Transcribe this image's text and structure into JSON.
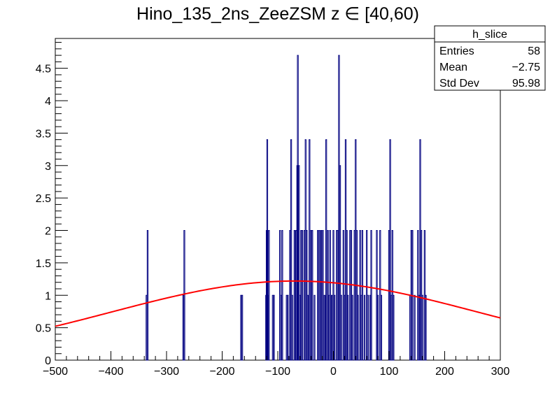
{
  "chart_data": {
    "type": "histogram",
    "title": "Hino_135_2ns_ZeeZSM z  ∈ [40,60)",
    "xlim": [
      -500,
      300
    ],
    "ylim": [
      0,
      4.96
    ],
    "x_ticks": [
      "−500",
      "−400",
      "−300",
      "−200",
      "−100",
      "0",
      "100",
      "200",
      "300"
    ],
    "y_ticks": [
      "0",
      "0.5",
      "1",
      "1.5",
      "2",
      "2.5",
      "3",
      "3.5",
      "4",
      "4.5"
    ],
    "bin_width": 1.6,
    "series": [
      {
        "kind": "histogram",
        "color": "#000080",
        "bins": [
          [
            -336,
            1
          ],
          [
            -334,
            2
          ],
          [
            -270,
            1
          ],
          [
            -268,
            2
          ],
          [
            -166,
            1
          ],
          [
            -164,
            1
          ],
          [
            -121,
            1
          ],
          [
            -120,
            2
          ],
          [
            -119,
            3.4
          ],
          [
            -118,
            1
          ],
          [
            -116,
            2
          ],
          [
            -109,
            1
          ],
          [
            -107,
            1
          ],
          [
            -96,
            2
          ],
          [
            -94,
            1
          ],
          [
            -92,
            2
          ],
          [
            -84,
            1
          ],
          [
            -82,
            1
          ],
          [
            -78,
            2
          ],
          [
            -76,
            3.4
          ],
          [
            -74,
            1
          ],
          [
            -70,
            2
          ],
          [
            -67,
            2
          ],
          [
            -65,
            3
          ],
          [
            -64,
            4.7
          ],
          [
            -62,
            3
          ],
          [
            -60,
            1
          ],
          [
            -58,
            2
          ],
          [
            -56,
            2
          ],
          [
            -52,
            2
          ],
          [
            -50,
            3.4
          ],
          [
            -48,
            2
          ],
          [
            -46,
            1
          ],
          [
            -43,
            3.4
          ],
          [
            -40,
            2
          ],
          [
            -38,
            2
          ],
          [
            -34,
            1
          ],
          [
            -28,
            2
          ],
          [
            -25,
            2
          ],
          [
            -22,
            2
          ],
          [
            -19,
            2
          ],
          [
            -16,
            1
          ],
          [
            -13,
            3.4
          ],
          [
            -10,
            2
          ],
          [
            -8,
            1
          ],
          [
            -6,
            2
          ],
          [
            -3,
            1
          ],
          [
            0,
            2
          ],
          [
            2,
            1
          ],
          [
            6,
            2
          ],
          [
            8,
            2
          ],
          [
            10,
            4.7
          ],
          [
            12,
            3
          ],
          [
            14,
            1
          ],
          [
            18,
            2
          ],
          [
            20,
            1
          ],
          [
            22,
            3.4
          ],
          [
            24,
            2
          ],
          [
            26,
            1
          ],
          [
            30,
            2
          ],
          [
            32,
            2
          ],
          [
            34,
            1
          ],
          [
            38,
            2
          ],
          [
            40,
            3.4
          ],
          [
            42,
            2
          ],
          [
            44,
            1
          ],
          [
            48,
            2
          ],
          [
            50,
            1
          ],
          [
            52,
            2
          ],
          [
            56,
            1
          ],
          [
            60,
            2
          ],
          [
            62,
            1
          ],
          [
            66,
            1
          ],
          [
            68,
            2
          ],
          [
            78,
            2
          ],
          [
            80,
            1
          ],
          [
            84,
            2
          ],
          [
            86,
            1
          ],
          [
            100,
            2
          ],
          [
            102,
            3.4
          ],
          [
            104,
            1
          ],
          [
            106,
            2
          ],
          [
            108,
            1
          ],
          [
            138,
            1
          ],
          [
            140,
            2
          ],
          [
            142,
            2
          ],
          [
            146,
            1
          ],
          [
            152,
            2
          ],
          [
            154,
            1
          ],
          [
            156,
            3.4
          ],
          [
            158,
            2
          ],
          [
            160,
            1
          ],
          [
            164,
            2
          ],
          [
            166,
            1
          ]
        ]
      },
      {
        "kind": "fit",
        "function": "gaus",
        "color": "#ff0000",
        "constant": 1.22,
        "mean": -70,
        "sigma": 330
      }
    ],
    "legend": {
      "position": "top-right",
      "title": "h_slice",
      "rows": [
        {
          "label": "Entries",
          "value": "58"
        },
        {
          "label": "Mean",
          "value": "−2.75"
        },
        {
          "label": "Std Dev",
          "value": "95.98"
        }
      ]
    }
  }
}
